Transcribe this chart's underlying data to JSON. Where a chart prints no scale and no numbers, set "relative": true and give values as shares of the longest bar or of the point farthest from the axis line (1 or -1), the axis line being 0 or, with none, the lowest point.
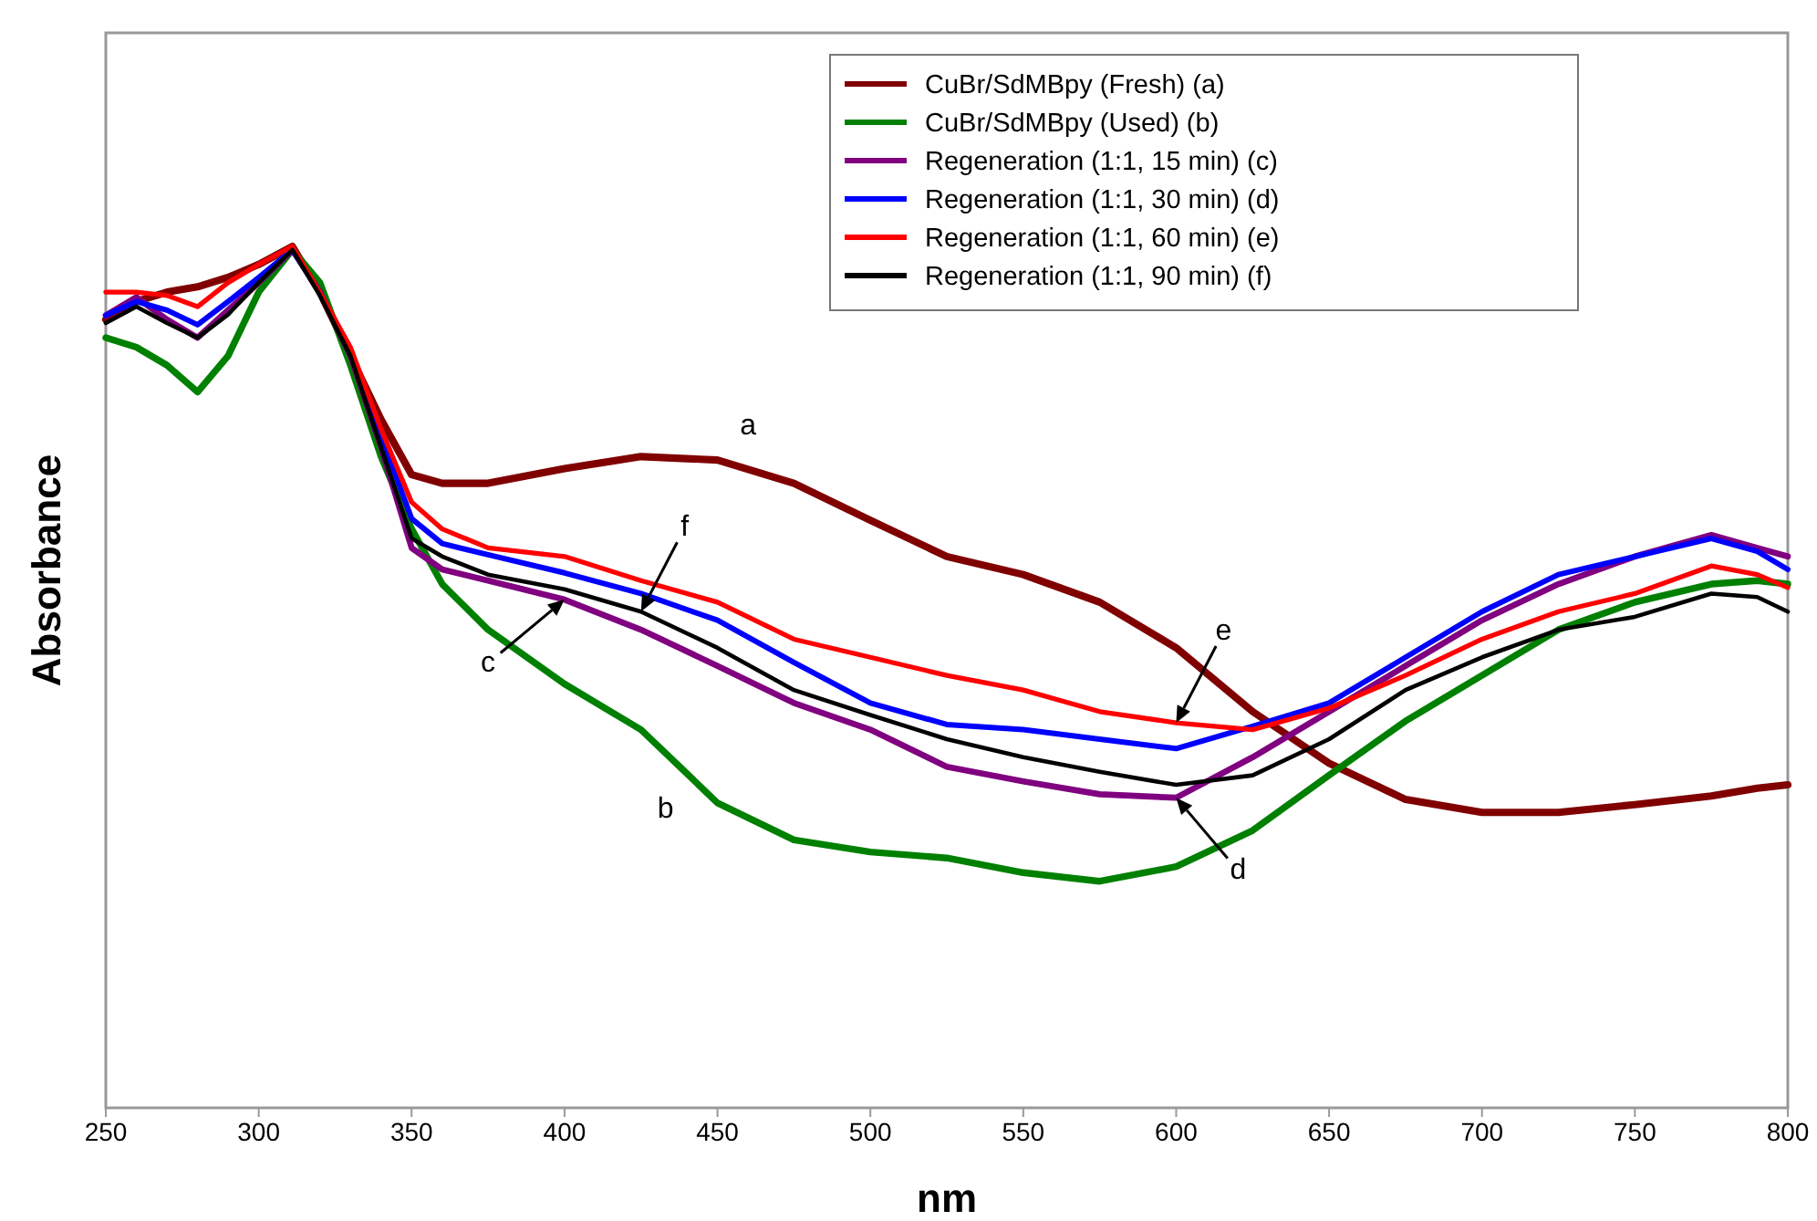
{
  "chart_data": {
    "type": "line",
    "relative": true,
    "xlabel": "nm",
    "ylabel": "Absorbance",
    "x": [
      250,
      260,
      270,
      280,
      290,
      300,
      311,
      320,
      330,
      340,
      350,
      360,
      375,
      400,
      425,
      450,
      475,
      500,
      525,
      550,
      575,
      600,
      625,
      650,
      675,
      700,
      725,
      750,
      775,
      790,
      800
    ],
    "xlim": [
      250,
      800
    ],
    "xticks": [
      250,
      300,
      350,
      400,
      450,
      500,
      550,
      600,
      650,
      700,
      750,
      800
    ],
    "grid": false,
    "legend": "top right",
    "marker": "none",
    "line_style": "solid",
    "series": [
      {
        "name": "CuBr/SdMBpy (Fresh) (a)",
        "color": "#800000",
        "values": [
          0.915,
          0.936,
          0.947,
          0.953,
          0.964,
          0.979,
          1.0,
          0.947,
          0.873,
          0.799,
          0.735,
          0.725,
          0.725,
          0.742,
          0.756,
          0.752,
          0.725,
          0.682,
          0.64,
          0.619,
          0.587,
          0.534,
          0.46,
          0.4,
          0.358,
          0.343,
          0.343,
          0.352,
          0.362,
          0.371,
          0.375
        ]
      },
      {
        "name": "CuBr/SdMBpy (Used) (b)",
        "color": "#008000",
        "values": [
          0.894,
          0.883,
          0.862,
          0.831,
          0.873,
          0.947,
          0.996,
          0.958,
          0.862,
          0.756,
          0.672,
          0.608,
          0.555,
          0.492,
          0.439,
          0.354,
          0.311,
          0.297,
          0.29,
          0.273,
          0.263,
          0.28,
          0.322,
          0.386,
          0.449,
          0.502,
          0.555,
          0.587,
          0.608,
          0.612,
          0.608
        ]
      },
      {
        "name": "Regeneration (1:1, 15 min) (c)",
        "color": "#800080",
        "values": [
          0.92,
          0.941,
          0.915,
          0.894,
          0.926,
          0.958,
          0.996,
          0.947,
          0.873,
          0.767,
          0.65,
          0.625,
          0.612,
          0.59,
          0.555,
          0.513,
          0.47,
          0.439,
          0.396,
          0.379,
          0.364,
          0.36,
          0.407,
          0.46,
          0.513,
          0.566,
          0.608,
          0.64,
          0.665,
          0.65,
          0.64
        ]
      },
      {
        "name": "Regeneration (1:1, 30 min) (d)",
        "color": "#0000ff",
        "values": [
          0.92,
          0.936,
          0.926,
          0.909,
          0.936,
          0.964,
          0.996,
          0.947,
          0.879,
          0.78,
          0.684,
          0.655,
          0.642,
          0.621,
          0.597,
          0.566,
          0.517,
          0.47,
          0.445,
          0.439,
          0.428,
          0.417,
          0.443,
          0.47,
          0.523,
          0.576,
          0.619,
          0.64,
          0.661,
          0.646,
          0.625
        ]
      },
      {
        "name": "Regeneration (1:1, 60 min) (e)",
        "color": "#ff0000",
        "values": [
          0.947,
          0.947,
          0.943,
          0.93,
          0.958,
          0.979,
          1.0,
          0.947,
          0.883,
          0.788,
          0.703,
          0.672,
          0.65,
          0.64,
          0.612,
          0.587,
          0.544,
          0.523,
          0.502,
          0.485,
          0.46,
          0.447,
          0.439,
          0.464,
          0.502,
          0.544,
          0.576,
          0.597,
          0.629,
          0.619,
          0.604
        ]
      },
      {
        "name": "Regeneration (1:1, 90 min) (f)",
        "color": "#000000",
        "values": [
          0.911,
          0.93,
          0.911,
          0.894,
          0.921,
          0.958,
          0.996,
          0.943,
          0.873,
          0.767,
          0.661,
          0.64,
          0.619,
          0.602,
          0.576,
          0.534,
          0.485,
          0.456,
          0.428,
          0.407,
          0.39,
          0.375,
          0.386,
          0.428,
          0.485,
          0.523,
          0.555,
          0.57,
          0.597,
          0.593,
          0.576
        ]
      }
    ],
    "annotations": [
      {
        "text": "a",
        "x": 460,
        "y": 0.74
      },
      {
        "text": "b",
        "x": 433,
        "y": 0.41
      },
      {
        "text": "c",
        "x": 400,
        "y": 0.59
      },
      {
        "text": "f",
        "x": 425,
        "y": 0.576
      },
      {
        "text": "e",
        "x": 600,
        "y": 0.447
      },
      {
        "text": "d",
        "x": 600,
        "y": 0.36
      }
    ]
  }
}
